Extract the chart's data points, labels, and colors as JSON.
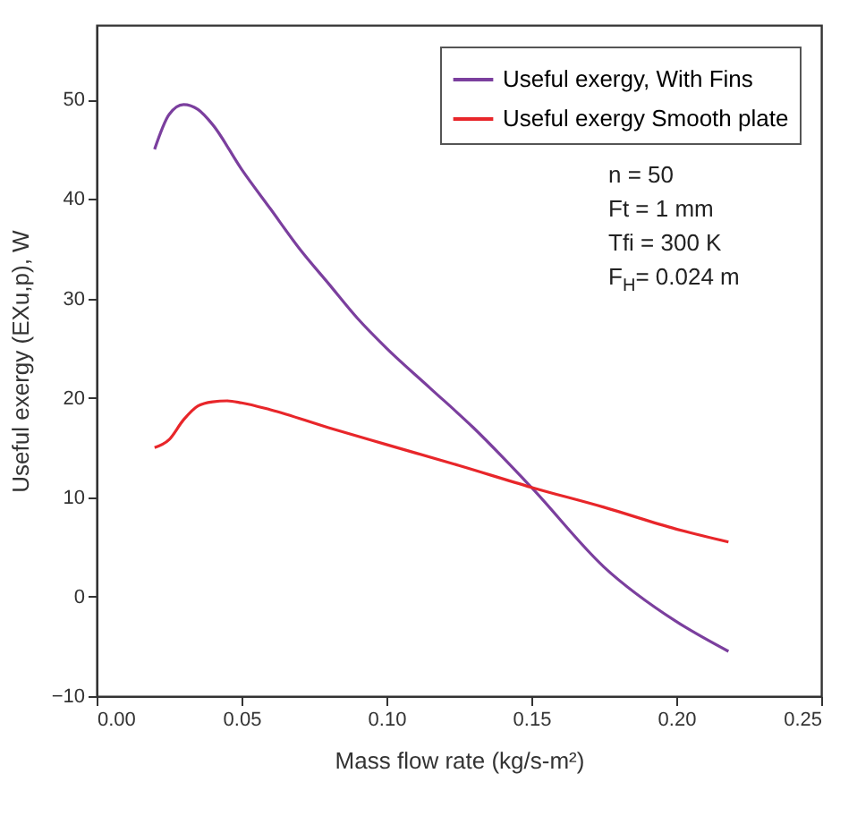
{
  "chart_data": {
    "type": "line",
    "xlabel": "Mass flow rate (kg/s-m²)",
    "ylabel": "Useful exergy (EXu,p), W",
    "xlim": [
      0,
      0.25
    ],
    "xticks": [
      {
        "value": 0,
        "label": "0.00"
      },
      0.05,
      {
        "value": 0.1,
        "label": "0.10"
      },
      0.15,
      {
        "value": 0.2,
        "label": "0.20"
      },
      0.25
    ],
    "ylim": [
      -10,
      57.5
    ],
    "yticks": [
      -10,
      0,
      10,
      20,
      30,
      40,
      50
    ],
    "legend": "top right",
    "grid": false,
    "marker": "none",
    "line_style": "solid",
    "annotations": [
      "n = 50",
      "Ft = 1 mm",
      "Tfi = 300 K",
      "F$_{H}$= 0.024 m"
    ],
    "series": [
      {
        "name": "Useful exergy, With Fins",
        "color": "#7b3f9e",
        "x": [
          0.02,
          0.025,
          0.03,
          0.035,
          0.04,
          0.05,
          0.06,
          0.07,
          0.08,
          0.09,
          0.1,
          0.115,
          0.13,
          0.15,
          0.175,
          0.2,
          0.218
        ],
        "values": [
          45,
          48.5,
          49.5,
          49,
          47.5,
          43,
          39,
          35,
          31.5,
          28,
          25,
          21,
          17,
          11,
          3,
          -2.5,
          -5.5
        ]
      },
      {
        "name": "Useful exergy Smooth plate",
        "color": "#e8262a",
        "x": [
          0.02,
          0.025,
          0.03,
          0.035,
          0.04,
          0.045,
          0.05,
          0.06,
          0.08,
          0.1,
          0.125,
          0.15,
          0.175,
          0.2,
          0.218
        ],
        "values": [
          15,
          15.8,
          17.8,
          19.2,
          19.6,
          19.7,
          19.5,
          18.8,
          17,
          15.3,
          13.2,
          11,
          9,
          6.8,
          5.5
        ]
      }
    ]
  }
}
